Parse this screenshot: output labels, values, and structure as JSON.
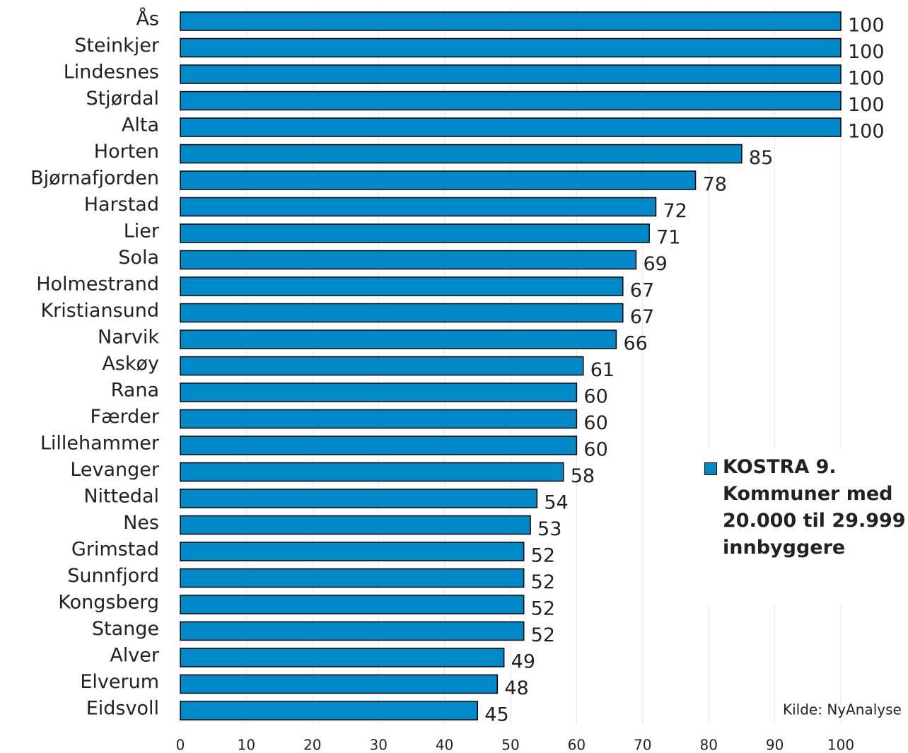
{
  "chart_data": {
    "type": "barh",
    "categories": [
      "Ås",
      "Steinkjer",
      "Lindesnes",
      "Stjørdal",
      "Alta",
      "Horten",
      "Bjørnafjorden",
      "Harstad",
      "Lier",
      "Sola",
      "Holmestrand",
      "Kristiansund",
      "Narvik",
      "Askøy",
      "Rana",
      "Færder",
      "Lillehammer",
      "Levanger",
      "Nittedal",
      "Nes",
      "Grimstad",
      "Sunnfjord",
      "Kongsberg",
      "Stange",
      "Alver",
      "Elverum",
      "Eidsvoll"
    ],
    "series": [
      {
        "name": "KOSTRA 9. Kommuner med 20.000 til 29.999 innbyggere",
        "color": "#0089c9",
        "values": [
          100,
          100,
          100,
          100,
          100,
          85,
          78,
          72,
          71,
          69,
          67,
          67,
          66,
          61,
          60,
          60,
          60,
          58,
          54,
          53,
          52,
          52,
          52,
          52,
          49,
          48,
          45
        ]
      }
    ],
    "xlim": [
      0,
      100
    ],
    "xticks": [
      0,
      10,
      20,
      30,
      40,
      50,
      60,
      70,
      80,
      90,
      100
    ],
    "grid": true,
    "source": "Kilde: NyAnalyse"
  }
}
